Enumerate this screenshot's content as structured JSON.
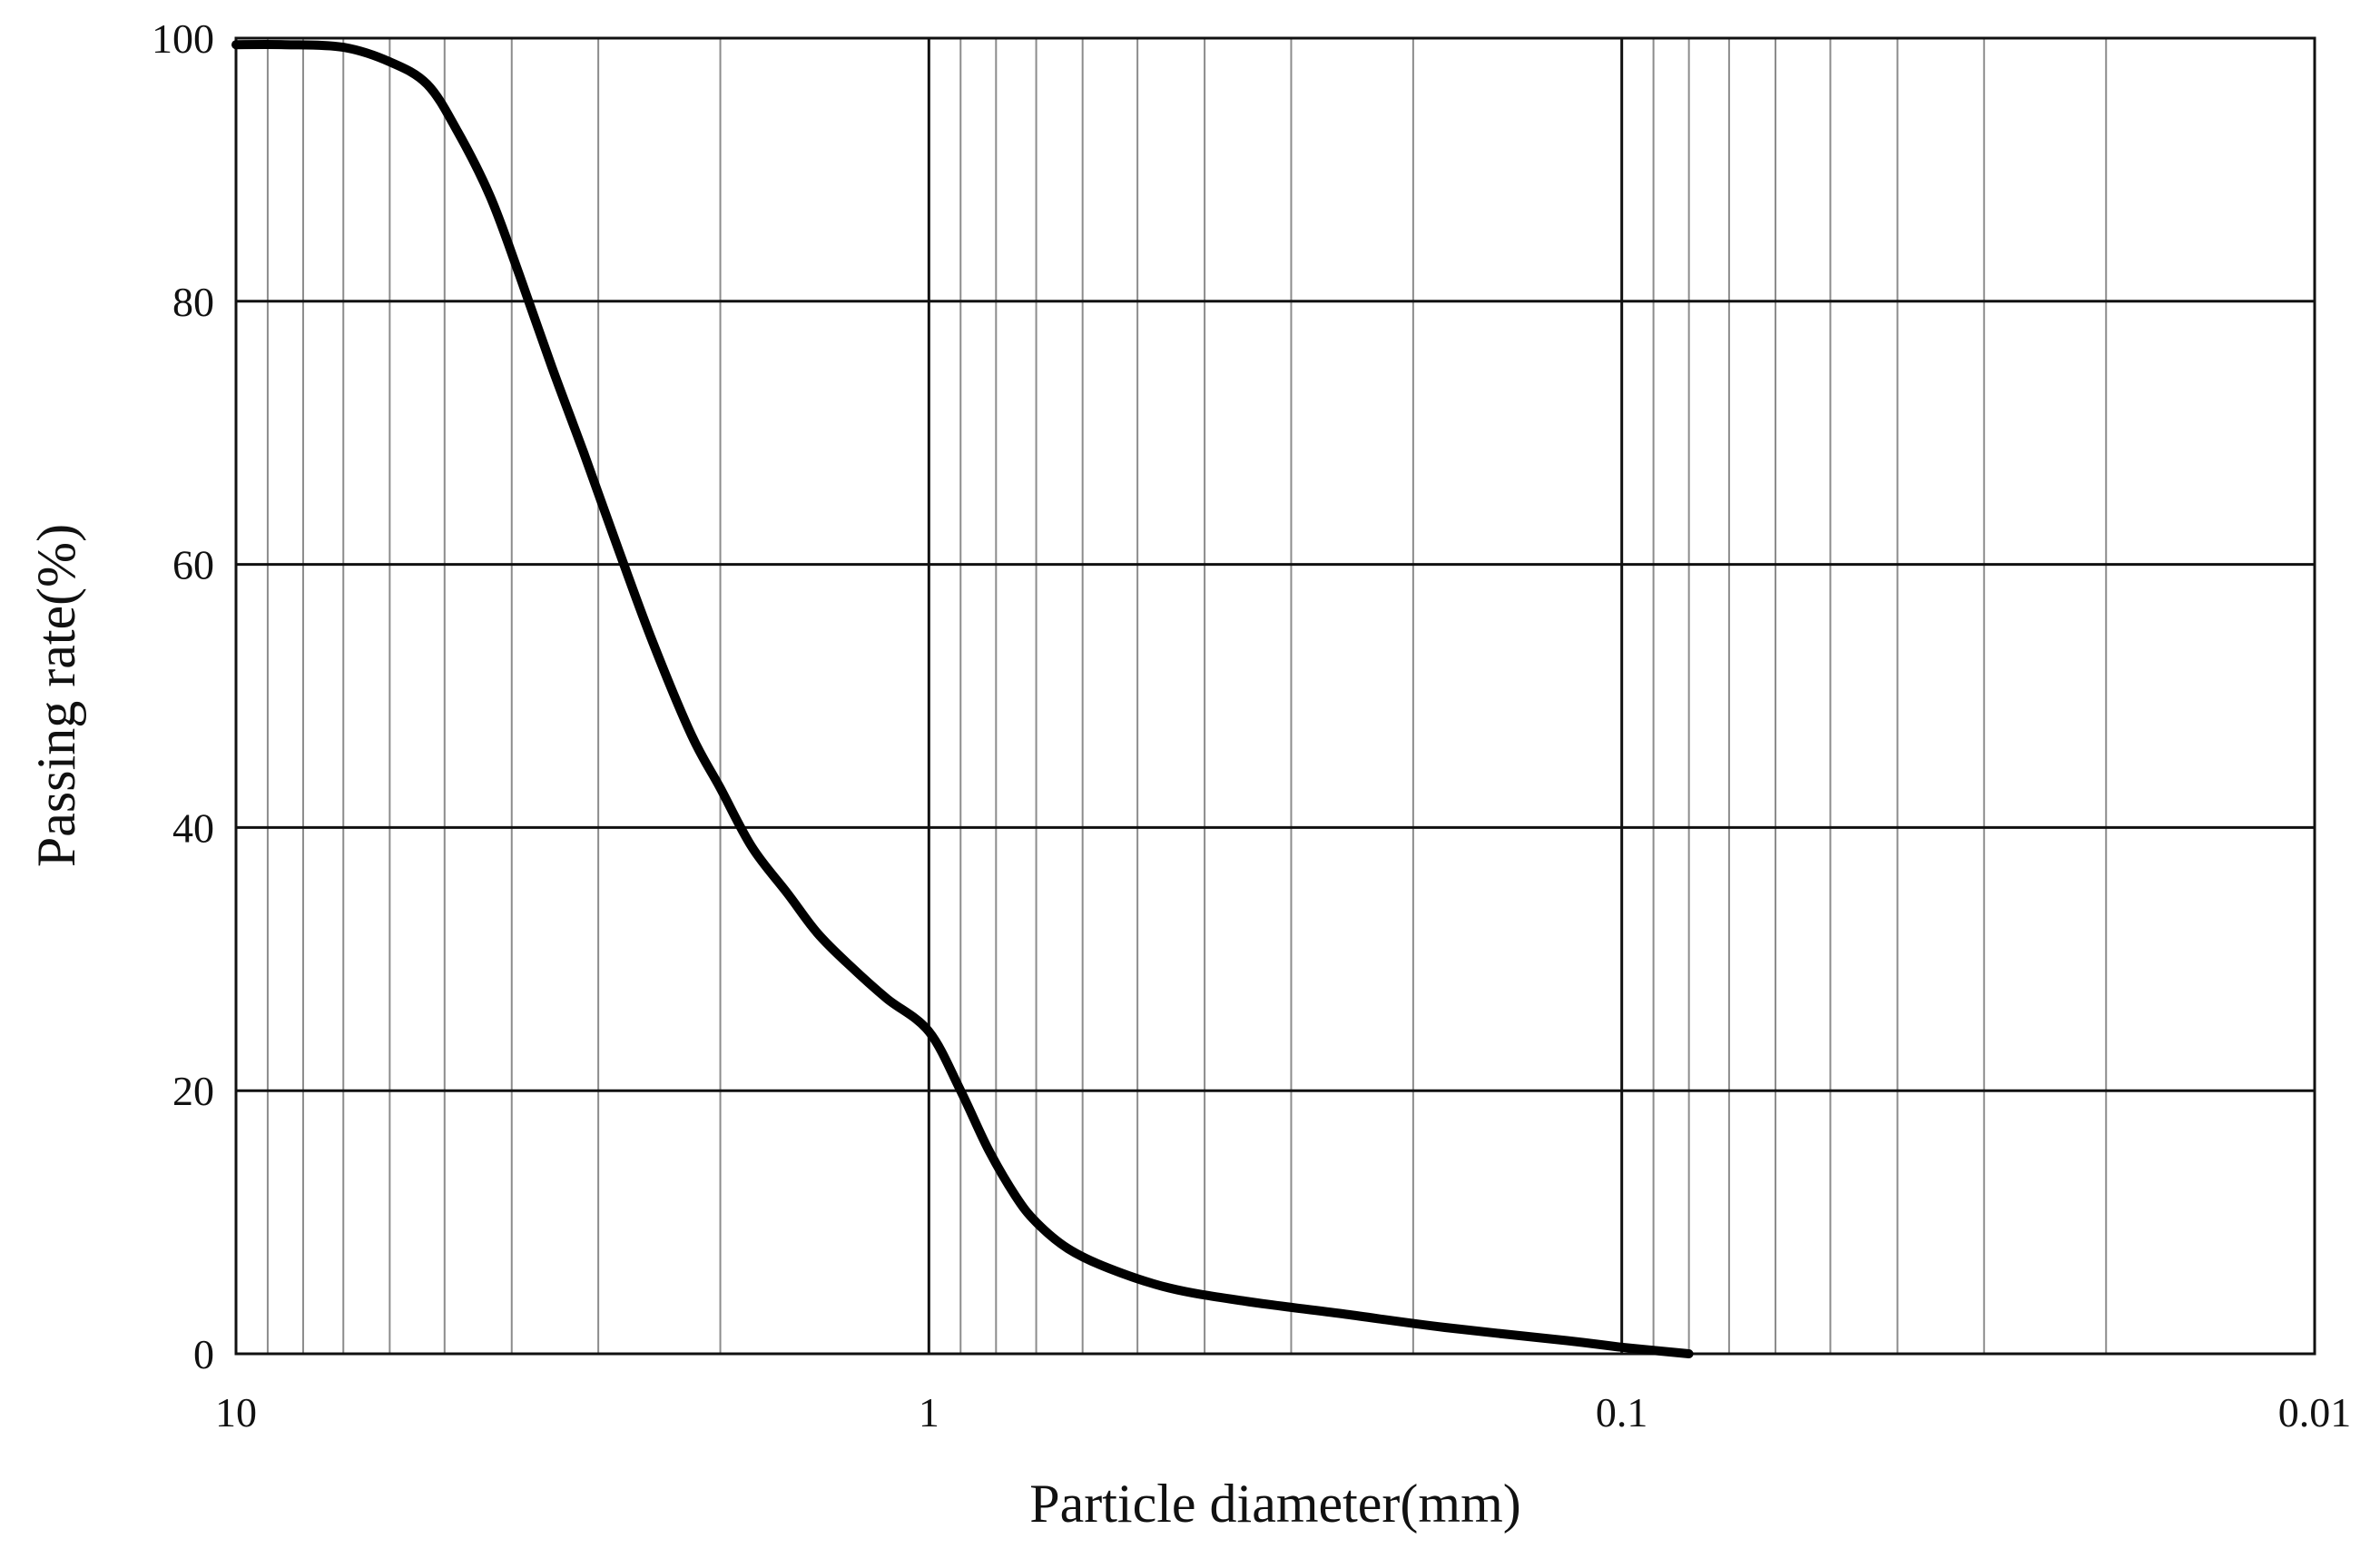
{
  "chart_data": {
    "type": "line",
    "title": "",
    "xlabel": "Particle diameter(mm)",
    "ylabel": "Passing rate(%)",
    "x_scale": "log",
    "x_reversed": true,
    "xlim": [
      10,
      0.01
    ],
    "ylim": [
      0,
      100
    ],
    "grid": true,
    "x_ticks": [
      10,
      1,
      0.1,
      0.01
    ],
    "x_tick_labels": [
      "10",
      "1",
      "0.1",
      "0.01"
    ],
    "y_ticks": [
      0,
      20,
      40,
      60,
      80,
      100
    ],
    "y_tick_labels": [
      "0",
      "20",
      "40",
      "60",
      "80",
      "100"
    ],
    "series": [
      {
        "name": "Passing rate",
        "x": [
          10,
          8.5,
          7,
          6,
          5.3,
          4.8,
          4.3,
          3.9,
          3.5,
          3.15,
          2.8,
          2.5,
          2.2,
          2.0,
          1.8,
          1.6,
          1.45,
          1.3,
          1.15,
          1.0,
          0.9,
          0.82,
          0.75,
          0.7,
          0.63,
          0.55,
          0.45,
          0.35,
          0.25,
          0.18,
          0.12,
          0.1,
          0.08
        ],
        "y": [
          99.5,
          99.5,
          99.3,
          98.2,
          96.5,
          93,
          88,
          82,
          75,
          68.5,
          61,
          54,
          47,
          43,
          38.5,
          35,
          32,
          29.5,
          27,
          24.5,
          20,
          15.5,
          12,
          10,
          8,
          6.5,
          5,
          4,
          3,
          2,
          1,
          0.5,
          0
        ]
      }
    ]
  }
}
